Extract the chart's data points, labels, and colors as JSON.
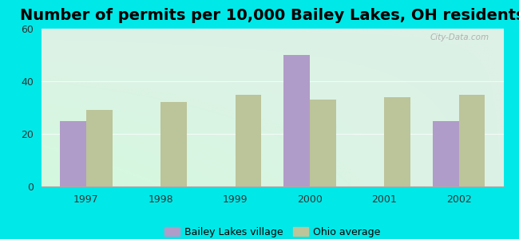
{
  "title": "Number of permits per 10,000 Bailey Lakes, OH residents",
  "years": [
    1997,
    1998,
    1999,
    2000,
    2001,
    2002
  ],
  "bailey_lakes": [
    25,
    0,
    0,
    50,
    0,
    25
  ],
  "ohio_avg": [
    29,
    32,
    35,
    33,
    34,
    35
  ],
  "bar_color_bailey": "#b09cc8",
  "bar_color_ohio": "#bcc49a",
  "background_outer": "#00e8e8",
  "background_inner": "#e8f5ee",
  "ylim": [
    0,
    60
  ],
  "yticks": [
    0,
    20,
    40,
    60
  ],
  "title_fontsize": 14,
  "legend_label_bailey": "Bailey Lakes village",
  "legend_label_ohio": "Ohio average",
  "bar_width": 0.35
}
